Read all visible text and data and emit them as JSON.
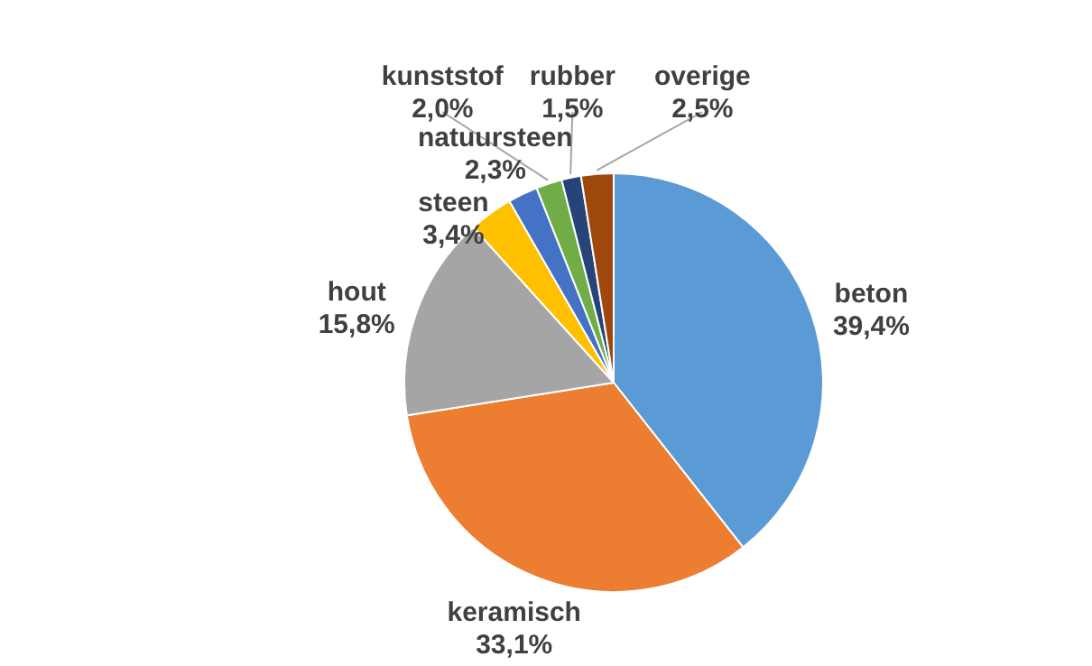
{
  "chart_data": {
    "type": "pie",
    "categories": [
      "beton",
      "keramisch",
      "hout",
      "steen",
      "natuursteen",
      "kunststof",
      "rubber",
      "overige"
    ],
    "values": [
      39.4,
      33.1,
      15.8,
      3.4,
      2.3,
      2.0,
      1.5,
      2.5
    ],
    "value_labels": [
      "39,4%",
      "33,1%",
      "15,8%",
      "3,4%",
      "2,3%",
      "2,0%",
      "1,5%",
      "2,5%"
    ],
    "colors": [
      "#5b9bd5",
      "#ed7d31",
      "#a5a5a5",
      "#ffc000",
      "#4472c4",
      "#70ad47",
      "#264478",
      "#9e480e"
    ]
  }
}
